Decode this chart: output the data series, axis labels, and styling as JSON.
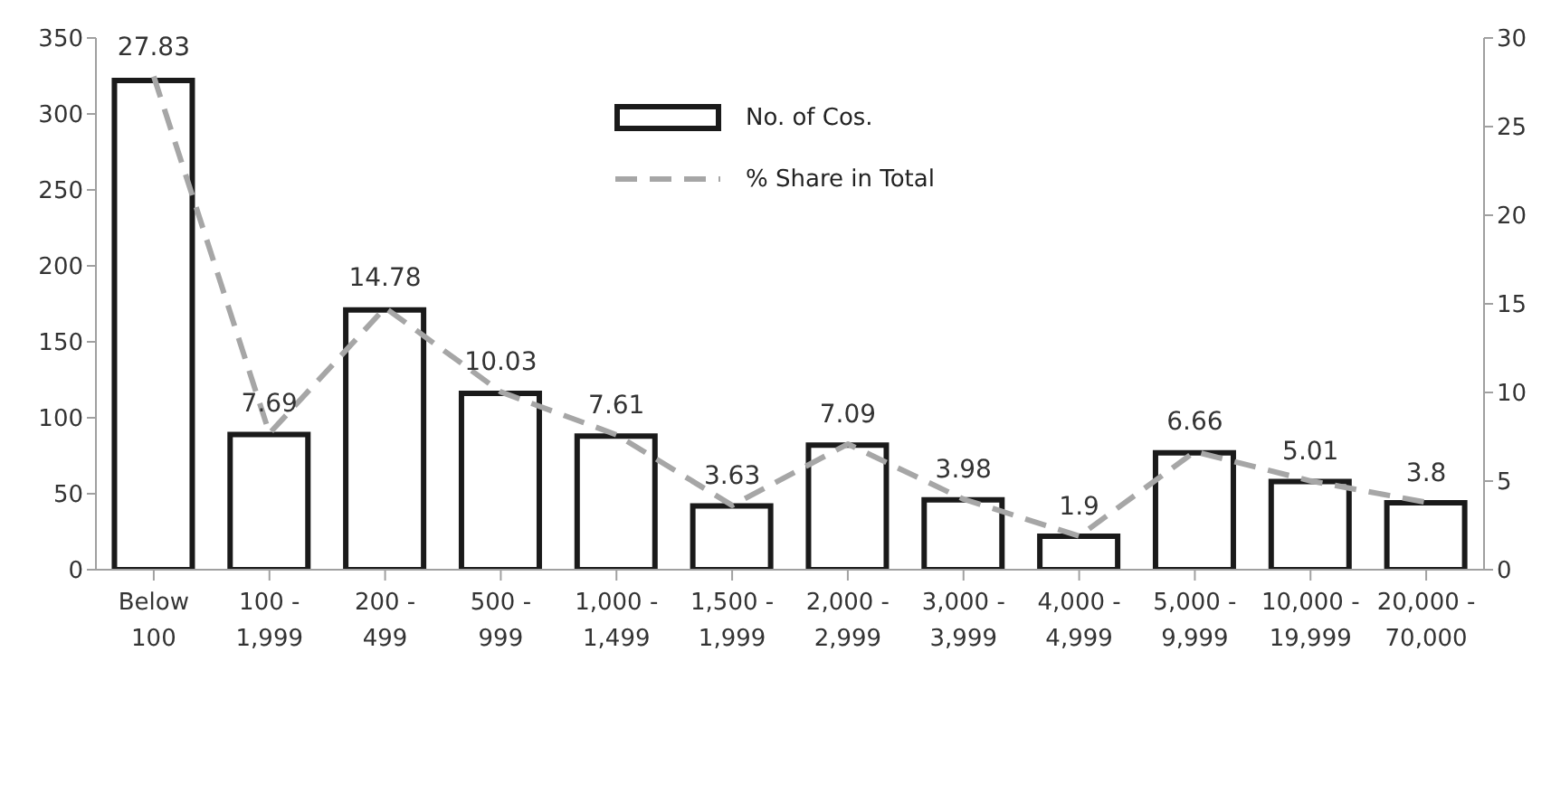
{
  "chart_data": {
    "type": "bar",
    "categories": [
      "Below 100",
      "100 - 1,999",
      "200 - 499",
      "500 - 999",
      "1,000 - 1,499",
      "1,500 - 1,999",
      "2,000 - 2,999",
      "3,000 - 3,999",
      "4,000 - 4,999",
      "5,000 - 9,999",
      "10,000 - 19,999",
      "20,000 - 70,000"
    ],
    "series": [
      {
        "name": "No. of Cos.",
        "color": "#1a1a1a",
        "values": [
          322,
          89,
          171,
          116,
          88,
          42,
          82,
          46,
          22,
          77,
          58,
          44
        ]
      },
      {
        "name": "% Share in Total",
        "type": "line",
        "axis": "y2",
        "color": "#a6a6a6",
        "line_style": "dashed",
        "marker": "none",
        "values": [
          27.83,
          7.69,
          14.78,
          10.03,
          7.61,
          3.63,
          7.09,
          3.98,
          1.9,
          6.66,
          5.01,
          3.8
        ],
        "value_labels": [
          "27.83",
          "7.69",
          "14.78",
          "10.03",
          "7.61",
          "3.63",
          "7.09",
          "3.98",
          "1.9",
          "6.66",
          "5.01",
          "3.8"
        ]
      }
    ],
    "ylim": [
      0,
      350
    ],
    "yticks": [
      0,
      50,
      100,
      150,
      200,
      250,
      300,
      350
    ],
    "y2lim": [
      0,
      30
    ],
    "y2ticks": [
      0,
      5,
      10,
      15,
      20,
      25,
      30
    ],
    "grid": false,
    "legend": "top"
  }
}
